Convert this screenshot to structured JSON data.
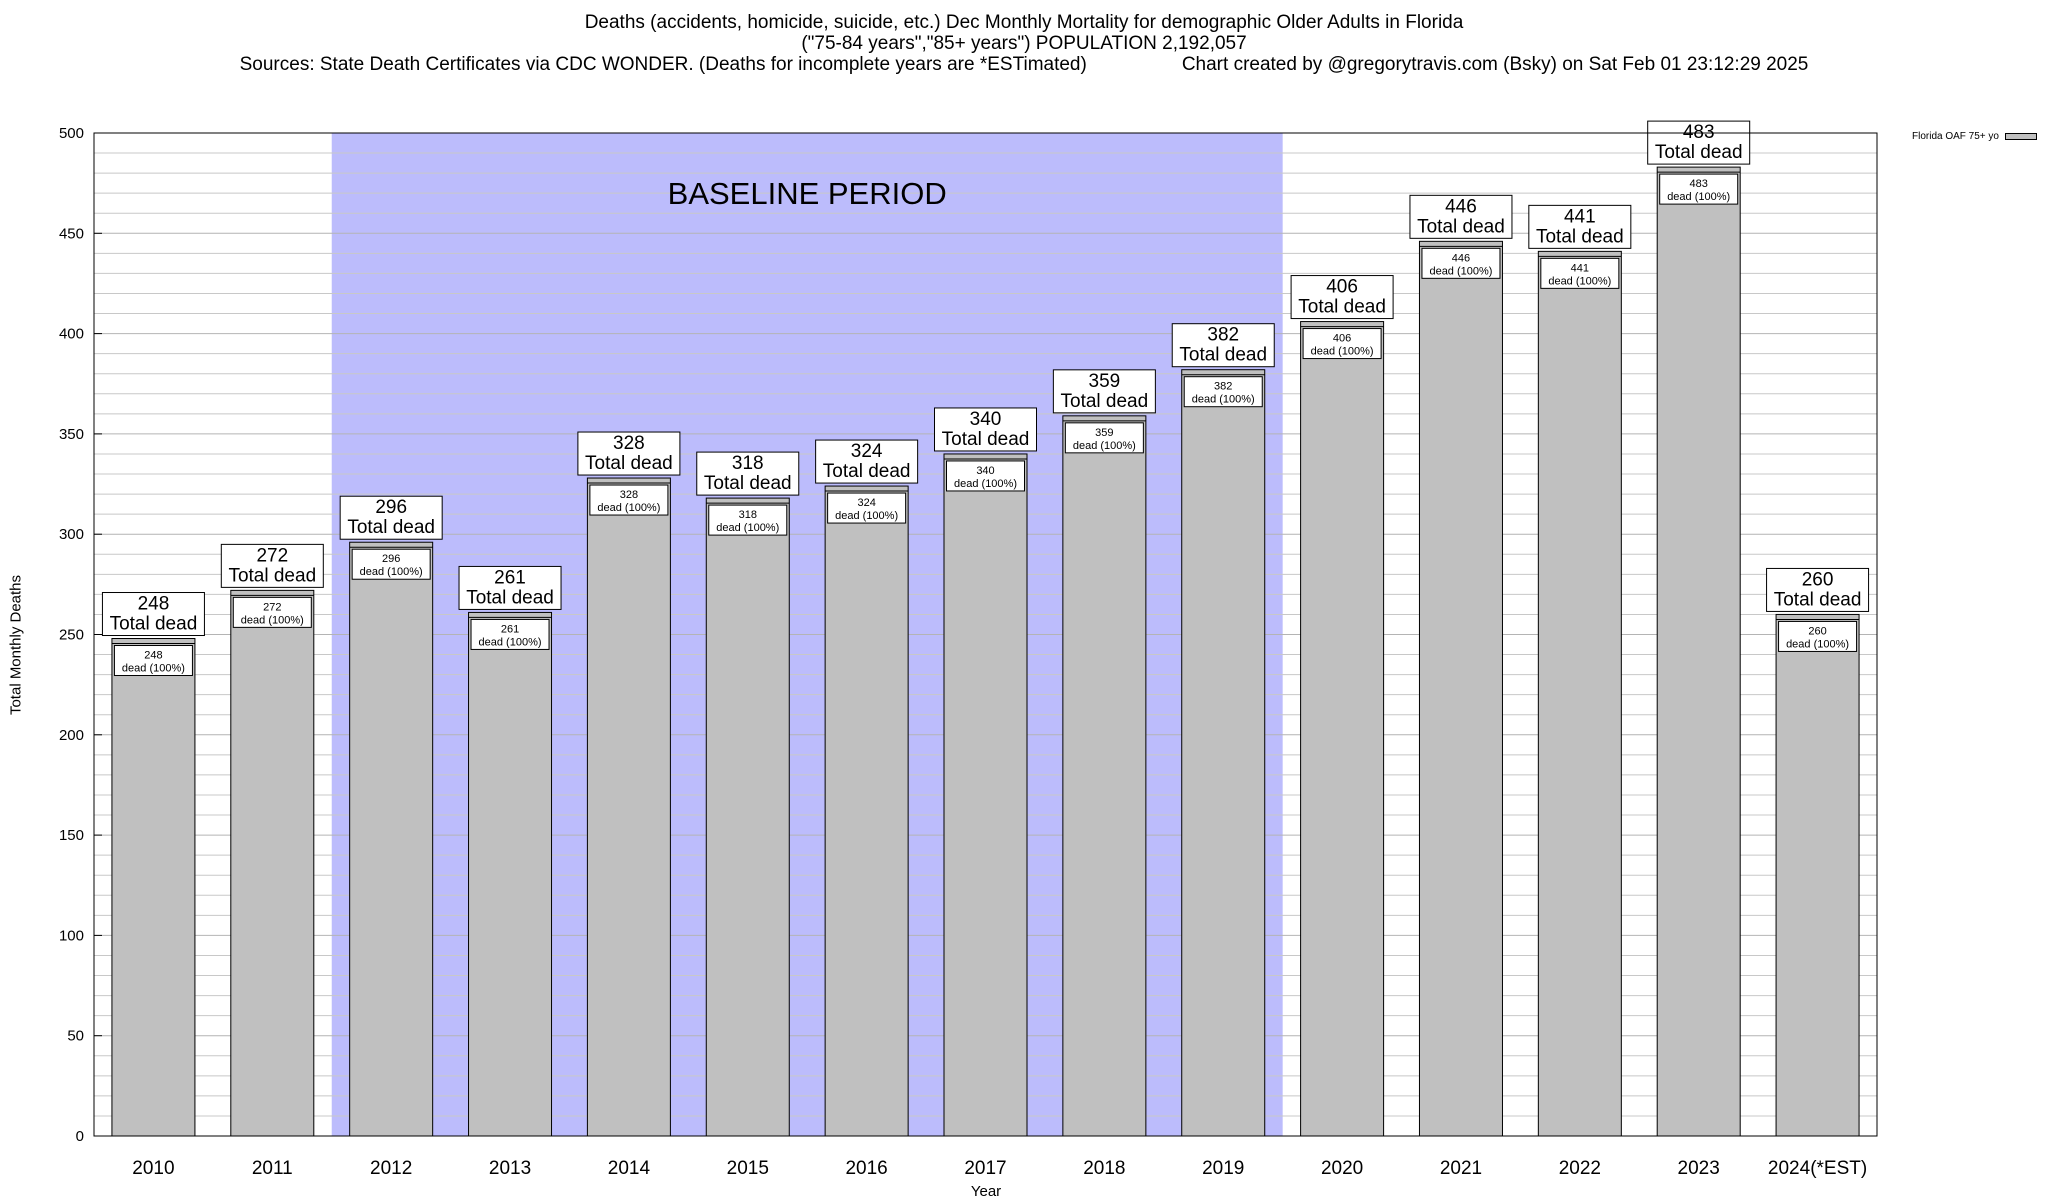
{
  "title": {
    "line1": "Deaths (accidents, homicide, suicide, etc.) Dec Monthly Mortality for demographic Older Adults in Florida",
    "line2": "(\"75-84 years\",\"85+ years\") POPULATION 2,192,057",
    "sources": "Sources: State Death Certificates via CDC WONDER. (Deaths for incomplete years are *ESTimated)",
    "credit": "Chart created by @gregorytravis.com (Bsky) on Sat Feb 01 23:12:29 2025"
  },
  "colors": {
    "bar_fill": "#c0c0c0",
    "baseline_shade": "#bcbcfc",
    "grid": "#c8c8c8",
    "axis": "#000000"
  },
  "chart_data": {
    "type": "bar",
    "categories": [
      "2010",
      "2011",
      "2012",
      "2013",
      "2014",
      "2015",
      "2016",
      "2017",
      "2018",
      "2019",
      "2020",
      "2021",
      "2022",
      "2023",
      "2024(*EST)"
    ],
    "series": [
      {
        "name": "Florida OAF 75+ yo",
        "values": [
          248,
          272,
          296,
          261,
          328,
          318,
          324,
          340,
          359,
          382,
          406,
          446,
          441,
          483,
          260
        ]
      }
    ],
    "xlabel": "Year",
    "ylabel": "Total Monthly Deaths",
    "ylim": [
      0,
      500
    ],
    "yticks": [
      0,
      50,
      100,
      150,
      200,
      250,
      300,
      350,
      400,
      450,
      500
    ],
    "grid": true,
    "legend": "top-right",
    "top_label_text": "Total dead",
    "inner_label_text": "dead (100%)",
    "baseline_period": {
      "label": "BASELINE PERIOD",
      "start": "2012",
      "end": "2019"
    }
  }
}
